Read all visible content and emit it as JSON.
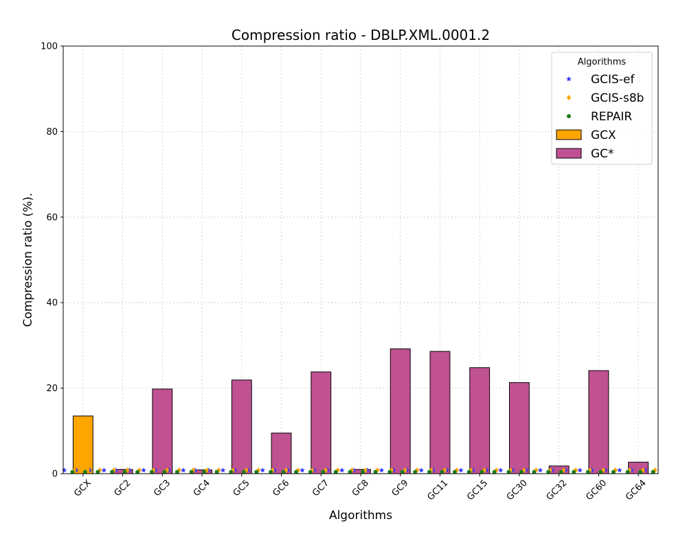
{
  "chart_data": {
    "type": "bar",
    "title": "Compression ratio -  DBLP.XML.0001.2",
    "xlabel": "Algorithms",
    "ylabel": "Compression ratio (%).",
    "ylim": [
      0,
      100
    ],
    "yticks": [
      0,
      20,
      40,
      60,
      80,
      100
    ],
    "grid": true,
    "legend_position": "top-right",
    "legend_title": "Algorithms",
    "categories": [
      "GCX",
      "GC2",
      "GC3",
      "GC4",
      "GC5",
      "GC6",
      "GC7",
      "GC8",
      "GC9",
      "GC11",
      "GC15",
      "GC30",
      "GC32",
      "GC60",
      "GC64"
    ],
    "series": [
      {
        "name": "GCX",
        "kind": "bar",
        "color": "#ffa500",
        "values": [
          13.5,
          null,
          null,
          null,
          null,
          null,
          null,
          null,
          null,
          null,
          null,
          null,
          null,
          null,
          null
        ]
      },
      {
        "name": "GC*",
        "kind": "bar",
        "color": "#c05292",
        "values": [
          null,
          1.0,
          19.8,
          0.9,
          21.9,
          9.5,
          23.8,
          1.0,
          29.2,
          28.6,
          24.8,
          21.3,
          1.8,
          24.1,
          2.7
        ]
      },
      {
        "name": "GCIS-ef",
        "kind": "scatter",
        "marker": "star",
        "color": "#3333ff",
        "values": [
          0.8,
          0.8,
          0.8,
          0.8,
          0.8,
          0.8,
          0.8,
          0.8,
          0.8,
          0.8,
          0.8,
          0.8,
          0.8,
          0.8,
          0.8
        ]
      },
      {
        "name": "GCIS-s8b",
        "kind": "scatter",
        "marker": "diamond",
        "color": "#ffa500",
        "values": [
          0.8,
          0.8,
          0.8,
          0.8,
          0.8,
          0.8,
          0.8,
          0.8,
          0.8,
          0.8,
          0.8,
          0.8,
          0.8,
          0.8,
          0.8
        ]
      },
      {
        "name": "REPAIR",
        "kind": "scatter",
        "marker": "circle",
        "color": "#1a7f1a",
        "values": [
          0.4,
          0.4,
          0.4,
          0.4,
          0.4,
          0.4,
          0.4,
          0.4,
          0.4,
          0.4,
          0.4,
          0.4,
          0.4,
          0.4,
          0.4
        ]
      }
    ],
    "legend_entries": [
      "GCIS-ef",
      "GCIS-s8b",
      "REPAIR",
      "GCX",
      "GC*"
    ]
  }
}
